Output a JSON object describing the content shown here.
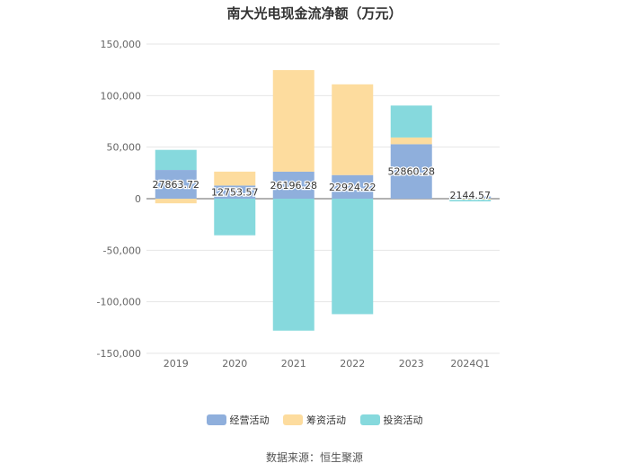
{
  "chart_data": {
    "type": "bar",
    "title": "南大光电现金流净额（万元）",
    "categories": [
      "2019",
      "2020",
      "2021",
      "2022",
      "2023",
      "2024Q1"
    ],
    "series": [
      {
        "name": "经营活动",
        "color": "#8fafdc",
        "values": [
          27863.72,
          12753.57,
          26196.28,
          22924.22,
          52860.28,
          2144.57
        ]
      },
      {
        "name": "筹资活动",
        "color": "#fddc9e",
        "values": [
          -4500,
          13500,
          98500,
          88000,
          6500,
          -1000
        ]
      },
      {
        "name": "投资活动",
        "color": "#86d9dd",
        "values": [
          19500,
          -35500,
          -128000,
          -112000,
          31000,
          -1600
        ]
      }
    ],
    "data_labels": [
      "27863.72",
      "12753.57",
      "26196.28",
      "22924.22",
      "52860.28",
      "2144.57"
    ],
    "ylim": [
      -150000,
      150000
    ],
    "yticks": [
      -150000,
      -100000,
      -50000,
      0,
      50000,
      100000,
      150000
    ],
    "ytick_labels": [
      "-150,000",
      "-100,000",
      "-50,000",
      "0",
      "50,000",
      "100,000",
      "150,000"
    ],
    "grid": true,
    "legend_position": "bottom"
  },
  "source_text": "数据来源：恒生聚源"
}
